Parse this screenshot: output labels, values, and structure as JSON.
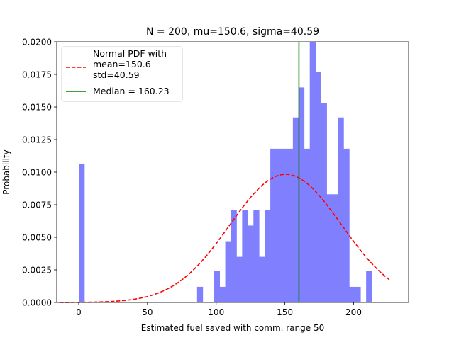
{
  "chart_data": {
    "type": "bar",
    "title": "N = 200, mu=150.6, sigma=40.59",
    "xlabel": "Estimated fuel saved with comm. range 50",
    "ylabel": "Probability",
    "xlim": [
      -16,
      240
    ],
    "ylim": [
      0,
      0.02
    ],
    "xticks": [
      0,
      50,
      100,
      150,
      200
    ],
    "yticks": [
      0.0,
      0.0025,
      0.005,
      0.0075,
      0.01,
      0.0125,
      0.015,
      0.0175,
      0.02
    ],
    "ytick_labels": [
      "0.0000",
      "0.0025",
      "0.0050",
      "0.0075",
      "0.0100",
      "0.0125",
      "0.0150",
      "0.0175",
      "0.0200"
    ],
    "grid": false,
    "legend_position": "top-left",
    "histogram": {
      "color": "#8080ff",
      "bin_edges": [
        0.0,
        4.1,
        8.2,
        12.3,
        16.4,
        20.5,
        24.6,
        28.7,
        32.8,
        36.9,
        41.0,
        45.1,
        49.2,
        53.3,
        57.4,
        61.5,
        65.6,
        69.7,
        73.8,
        77.9,
        82.0,
        86.1,
        90.2,
        94.3,
        98.4,
        102.5,
        106.6,
        110.7,
        114.8,
        118.9,
        123.0,
        127.1,
        131.2,
        135.3,
        139.4,
        143.5,
        147.6,
        151.7,
        155.8,
        159.9,
        164.0,
        168.1,
        172.2,
        176.3,
        180.4,
        184.5,
        188.6,
        192.7,
        196.8,
        200.9,
        205.0,
        209.1,
        213.2
      ],
      "values": [
        0.0106,
        0,
        0,
        0,
        0,
        0,
        0,
        0,
        0,
        0,
        0,
        0,
        0,
        0,
        0,
        0,
        0,
        0,
        0,
        0,
        0,
        0.0012,
        0,
        0,
        0.0024,
        0.0012,
        0.0047,
        0.0071,
        0.0035,
        0.0071,
        0.0059,
        0.0071,
        0.0035,
        0.0071,
        0.0118,
        0.0118,
        0.0118,
        0.0118,
        0.0142,
        0.0165,
        0.0118,
        0.02,
        0.0177,
        0.0153,
        0.0083,
        0.0083,
        0.0142,
        0.0118,
        0.0012,
        0.0012,
        0,
        0.0024
      ]
    },
    "series": [
      {
        "name": "Normal PDF with\nmean=150.6\nstd=40.59",
        "type": "line",
        "style": "dashed",
        "color": "#ff0000",
        "mean": 150.6,
        "std": 40.59,
        "x_range": [
          -14,
          226
        ]
      },
      {
        "name": "Median = 160.23",
        "type": "vline",
        "color": "#008000",
        "x": 160.23
      }
    ]
  }
}
